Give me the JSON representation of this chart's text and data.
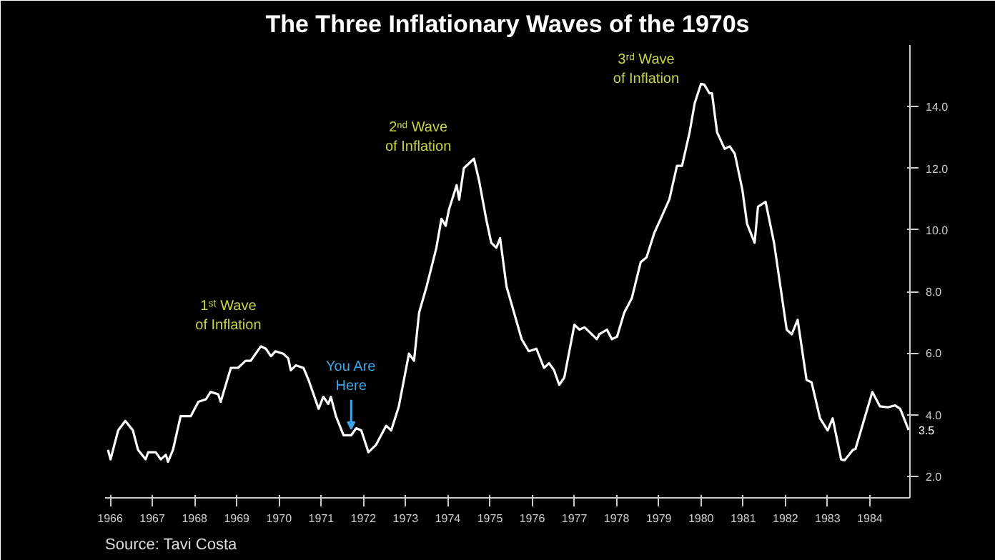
{
  "chart_data": {
    "type": "line",
    "title": "The Three Inflationary Waves of the 1970s",
    "x": [
      1966.45,
      1966.51,
      1966.69,
      1966.86,
      1967.04,
      1967.16,
      1967.34,
      1967.4,
      1967.58,
      1967.7,
      1967.82,
      1967.87,
      1967.99,
      1968.17,
      1968.41,
      1968.59,
      1968.77,
      1968.88,
      1969.06,
      1969.12,
      1969.36,
      1969.53,
      1969.71,
      1969.83,
      1970.07,
      1970.19,
      1970.31,
      1970.42,
      1970.6,
      1970.72,
      1970.78,
      1970.9,
      1971.08,
      1971.2,
      1971.44,
      1971.55,
      1971.67,
      1971.73,
      1971.85,
      1972.03,
      1972.21,
      1972.33,
      1972.45,
      1972.62,
      1972.8,
      1973.04,
      1973.16,
      1973.34,
      1973.58,
      1973.7,
      1973.82,
      1974.0,
      1974.23,
      1974.35,
      1974.45,
      1974.53,
      1974.71,
      1974.77,
      1974.88,
      1975.12,
      1975.24,
      1975.42,
      1975.53,
      1975.65,
      1975.74,
      1975.89,
      1976.07,
      1976.25,
      1976.42,
      1976.6,
      1976.78,
      1976.9,
      1977.02,
      1977.14,
      1977.26,
      1977.5,
      1977.62,
      1977.74,
      1977.91,
      1978.03,
      1978.09,
      1978.27,
      1978.39,
      1978.51,
      1978.68,
      1978.86,
      1979.07,
      1979.21,
      1979.39,
      1979.57,
      1979.75,
      1979.93,
      1980.05,
      1980.23,
      1980.35,
      1980.5,
      1980.58,
      1980.7,
      1980.76,
      1980.88,
      1981.06,
      1981.18,
      1981.3,
      1981.48,
      1981.59,
      1981.77,
      1981.85,
      1982.03,
      1982.23,
      1982.53,
      1982.65,
      1982.79,
      1983.0,
      1983.12,
      1983.32,
      1983.5,
      1983.62,
      1983.82,
      1983.9,
      1984.1,
      1984.16,
      1984.56,
      1984.74,
      1984.92,
      1985.1,
      1985.22,
      1985.42
    ],
    "series": [
      {
        "color": "#ffffff",
        "values": [
          2.86,
          2.55,
          3.49,
          3.8,
          3.49,
          2.86,
          2.55,
          2.78,
          2.78,
          2.55,
          2.7,
          2.47,
          2.86,
          3.95,
          3.95,
          4.42,
          4.5,
          4.74,
          4.66,
          4.42,
          5.52,
          5.52,
          5.75,
          5.75,
          6.22,
          6.14,
          5.9,
          6.06,
          5.98,
          5.83,
          5.44,
          5.6,
          5.52,
          5.13,
          4.19,
          4.58,
          4.35,
          4.58,
          3.95,
          3.33,
          3.33,
          3.56,
          3.49,
          2.78,
          3.02,
          3.64,
          3.49,
          4.27,
          5.98,
          5.75,
          7.31,
          8.17,
          9.42,
          10.36,
          10.13,
          10.67,
          11.45,
          10.98,
          12.0,
          12.31,
          11.61,
          10.28,
          9.58,
          9.42,
          9.73,
          8.17,
          7.31,
          6.45,
          6.06,
          6.14,
          5.52,
          5.67,
          5.44,
          4.97,
          5.2,
          6.92,
          6.76,
          6.84,
          6.61,
          6.45,
          6.61,
          6.76,
          6.45,
          6.53,
          7.31,
          7.78,
          8.95,
          9.11,
          9.89,
          10.44,
          10.99,
          12.08,
          12.08,
          13.17,
          14.11,
          14.74,
          14.71,
          14.43,
          14.43,
          13.17,
          12.63,
          12.71,
          12.47,
          11.3,
          10.2,
          9.58,
          10.75,
          10.91,
          9.58,
          6.76,
          6.61,
          7.08,
          5.13,
          5.05,
          3.88,
          3.49,
          3.88,
          2.55,
          2.52,
          2.86,
          2.89,
          4.74,
          4.27,
          4.24,
          4.3,
          4.19,
          3.5
        ]
      }
    ],
    "xlim": [
      1966.38,
      1985.45
    ],
    "ylim": [
      1.3,
      16.0
    ],
    "xticks": [
      {
        "value": 1966.5,
        "label": "1966"
      },
      {
        "value": 1967.5,
        "label": "1967"
      },
      {
        "value": 1968.5,
        "label": "1968"
      },
      {
        "value": 1969.5,
        "label": "1969"
      },
      {
        "value": 1970.5,
        "label": "1970"
      },
      {
        "value": 1971.5,
        "label": "1971"
      },
      {
        "value": 1972.5,
        "label": "1972"
      },
      {
        "value": 1973.5,
        "label": "1973"
      },
      {
        "value": 1974.5,
        "label": "1974"
      },
      {
        "value": 1975.5,
        "label": "1975"
      },
      {
        "value": 1976.5,
        "label": "1976"
      },
      {
        "value": 1977.5,
        "label": "1977"
      },
      {
        "value": 1978.5,
        "label": "1978"
      },
      {
        "value": 1979.5,
        "label": "1979"
      },
      {
        "value": 1980.5,
        "label": "1980"
      },
      {
        "value": 1981.5,
        "label": "1981"
      },
      {
        "value": 1982.5,
        "label": "1982"
      },
      {
        "value": 1983.5,
        "label": "1983"
      },
      {
        "value": 1984.5,
        "label": "1984"
      }
    ],
    "yticks": [
      {
        "value": 2,
        "label": "2.0"
      },
      {
        "value": 4,
        "label": "4.0"
      },
      {
        "value": 6,
        "label": "6.0"
      },
      {
        "value": 8,
        "label": "8.0"
      },
      {
        "value": 10,
        "label": "10.0"
      },
      {
        "value": 12,
        "label": "12.0"
      },
      {
        "value": 14,
        "label": "14.0"
      }
    ],
    "annotations": [
      "1ˢᵗ Wave\nof Inflation",
      "2ⁿᵈ Wave\nof Inflation",
      "3ʳᵈ Wave\nof Inflation",
      {
        "text": "You Are\nHere",
        "x": 1972.21,
        "y": 3.33
      },
      "3.5",
      "Source: Tavi Costa"
    ],
    "grid": false,
    "marker": "none",
    "line_style": "solid"
  }
}
